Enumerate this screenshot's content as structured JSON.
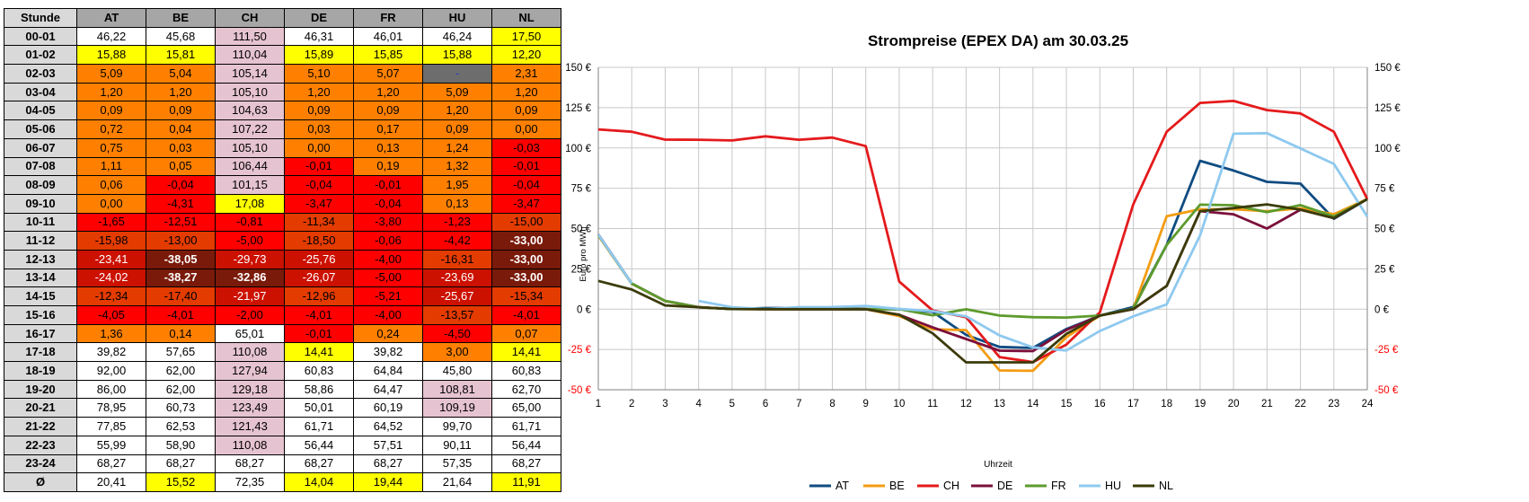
{
  "table": {
    "hour_header": "Stunde",
    "columns": [
      "AT",
      "BE",
      "CH",
      "DE",
      "FR",
      "HU",
      "NL"
    ],
    "rows": [
      {
        "hour": "00-01",
        "cells": [
          {
            "v": "46,22",
            "c": "w"
          },
          {
            "v": "45,68",
            "c": "w"
          },
          {
            "v": "111,50",
            "c": "p"
          },
          {
            "v": "46,31",
            "c": "w"
          },
          {
            "v": "46,01",
            "c": "w"
          },
          {
            "v": "46,24",
            "c": "w"
          },
          {
            "v": "17,50",
            "c": "y"
          }
        ]
      },
      {
        "hour": "01-02",
        "cells": [
          {
            "v": "15,88",
            "c": "y"
          },
          {
            "v": "15,81",
            "c": "y"
          },
          {
            "v": "110,04",
            "c": "p"
          },
          {
            "v": "15,89",
            "c": "y"
          },
          {
            "v": "15,85",
            "c": "y"
          },
          {
            "v": "15,88",
            "c": "y"
          },
          {
            "v": "12,20",
            "c": "y"
          }
        ]
      },
      {
        "hour": "02-03",
        "cells": [
          {
            "v": "5,09",
            "c": "o"
          },
          {
            "v": "5,04",
            "c": "o"
          },
          {
            "v": "105,14",
            "c": "p"
          },
          {
            "v": "5,10",
            "c": "o"
          },
          {
            "v": "5,07",
            "c": "o"
          },
          {
            "v": "-",
            "c": "g"
          },
          {
            "v": "2,31",
            "c": "o"
          }
        ]
      },
      {
        "hour": "03-04",
        "cells": [
          {
            "v": "1,20",
            "c": "o"
          },
          {
            "v": "1,20",
            "c": "o"
          },
          {
            "v": "105,10",
            "c": "p"
          },
          {
            "v": "1,20",
            "c": "o"
          },
          {
            "v": "1,20",
            "c": "o"
          },
          {
            "v": "5,09",
            "c": "o"
          },
          {
            "v": "1,20",
            "c": "o"
          }
        ]
      },
      {
        "hour": "04-05",
        "cells": [
          {
            "v": "0,09",
            "c": "o"
          },
          {
            "v": "0,09",
            "c": "o"
          },
          {
            "v": "104,63",
            "c": "p"
          },
          {
            "v": "0,09",
            "c": "o"
          },
          {
            "v": "0,09",
            "c": "o"
          },
          {
            "v": "1,20",
            "c": "o"
          },
          {
            "v": "0,09",
            "c": "o"
          }
        ]
      },
      {
        "hour": "05-06",
        "cells": [
          {
            "v": "0,72",
            "c": "o"
          },
          {
            "v": "0,04",
            "c": "o"
          },
          {
            "v": "107,22",
            "c": "p"
          },
          {
            "v": "0,03",
            "c": "o"
          },
          {
            "v": "0,17",
            "c": "o"
          },
          {
            "v": "0,09",
            "c": "o"
          },
          {
            "v": "0,00",
            "c": "o"
          }
        ]
      },
      {
        "hour": "06-07",
        "cells": [
          {
            "v": "0,75",
            "c": "o"
          },
          {
            "v": "0,03",
            "c": "o"
          },
          {
            "v": "105,10",
            "c": "p"
          },
          {
            "v": "0,00",
            "c": "o"
          },
          {
            "v": "0,13",
            "c": "o"
          },
          {
            "v": "1,24",
            "c": "o"
          },
          {
            "v": "-0,03",
            "c": "r"
          }
        ]
      },
      {
        "hour": "07-08",
        "cells": [
          {
            "v": "1,11",
            "c": "o"
          },
          {
            "v": "0,05",
            "c": "o"
          },
          {
            "v": "106,44",
            "c": "p"
          },
          {
            "v": "-0,01",
            "c": "r"
          },
          {
            "v": "0,19",
            "c": "o"
          },
          {
            "v": "1,32",
            "c": "o"
          },
          {
            "v": "-0,01",
            "c": "r"
          }
        ]
      },
      {
        "hour": "08-09",
        "cells": [
          {
            "v": "0,06",
            "c": "o"
          },
          {
            "v": "-0,04",
            "c": "r"
          },
          {
            "v": "101,15",
            "c": "p"
          },
          {
            "v": "-0,04",
            "c": "r"
          },
          {
            "v": "-0,01",
            "c": "r"
          },
          {
            "v": "1,95",
            "c": "o"
          },
          {
            "v": "-0,04",
            "c": "r"
          }
        ]
      },
      {
        "hour": "09-10",
        "cells": [
          {
            "v": "0,00",
            "c": "o"
          },
          {
            "v": "-4,31",
            "c": "r"
          },
          {
            "v": "17,08",
            "c": "y"
          },
          {
            "v": "-3,47",
            "c": "r"
          },
          {
            "v": "-0,04",
            "c": "r"
          },
          {
            "v": "0,13",
            "c": "o"
          },
          {
            "v": "-3,47",
            "c": "r"
          }
        ]
      },
      {
        "hour": "10-11",
        "cells": [
          {
            "v": "-1,65",
            "c": "r"
          },
          {
            "v": "-12,51",
            "c": "r"
          },
          {
            "v": "-0,81",
            "c": "r"
          },
          {
            "v": "-11,34",
            "c": "dr"
          },
          {
            "v": "-3,80",
            "c": "r"
          },
          {
            "v": "-1,23",
            "c": "r"
          },
          {
            "v": "-15,00",
            "c": "dr"
          }
        ]
      },
      {
        "hour": "11-12",
        "cells": [
          {
            "v": "-15,98",
            "c": "dr"
          },
          {
            "v": "-13,00",
            "c": "dr"
          },
          {
            "v": "-5,00",
            "c": "r"
          },
          {
            "v": "-18,50",
            "c": "dr"
          },
          {
            "v": "-0,06",
            "c": "r"
          },
          {
            "v": "-4,42",
            "c": "r"
          },
          {
            "v": "-33,00",
            "c": "xr"
          }
        ]
      },
      {
        "hour": "12-13",
        "cells": [
          {
            "v": "-23,41",
            "c": "er"
          },
          {
            "v": "-38,05",
            "c": "xr"
          },
          {
            "v": "-29,73",
            "c": "er"
          },
          {
            "v": "-25,76",
            "c": "er"
          },
          {
            "v": "-4,00",
            "c": "r"
          },
          {
            "v": "-16,31",
            "c": "dr"
          },
          {
            "v": "-33,00",
            "c": "xr"
          }
        ]
      },
      {
        "hour": "13-14",
        "cells": [
          {
            "v": "-24,02",
            "c": "er"
          },
          {
            "v": "-38,27",
            "c": "xr"
          },
          {
            "v": "-32,86",
            "c": "xr"
          },
          {
            "v": "-26,07",
            "c": "er"
          },
          {
            "v": "-5,00",
            "c": "r"
          },
          {
            "v": "-23,69",
            "c": "er"
          },
          {
            "v": "-33,00",
            "c": "xr"
          }
        ]
      },
      {
        "hour": "14-15",
        "cells": [
          {
            "v": "-12,34",
            "c": "dr"
          },
          {
            "v": "-17,40",
            "c": "dr"
          },
          {
            "v": "-21,97",
            "c": "er"
          },
          {
            "v": "-12,96",
            "c": "dr"
          },
          {
            "v": "-5,21",
            "c": "r"
          },
          {
            "v": "-25,67",
            "c": "er"
          },
          {
            "v": "-15,34",
            "c": "dr"
          }
        ]
      },
      {
        "hour": "15-16",
        "cells": [
          {
            "v": "-4,05",
            "c": "r"
          },
          {
            "v": "-4,01",
            "c": "r"
          },
          {
            "v": "-2,00",
            "c": "r"
          },
          {
            "v": "-4,01",
            "c": "r"
          },
          {
            "v": "-4,00",
            "c": "r"
          },
          {
            "v": "-13,57",
            "c": "dr"
          },
          {
            "v": "-4,01",
            "c": "r"
          }
        ]
      },
      {
        "hour": "16-17",
        "cells": [
          {
            "v": "1,36",
            "c": "o"
          },
          {
            "v": "0,14",
            "c": "o"
          },
          {
            "v": "65,01",
            "c": "w"
          },
          {
            "v": "-0,01",
            "c": "r"
          },
          {
            "v": "0,24",
            "c": "o"
          },
          {
            "v": "-4,50",
            "c": "r"
          },
          {
            "v": "0,07",
            "c": "o"
          }
        ]
      },
      {
        "hour": "17-18",
        "cells": [
          {
            "v": "39,82",
            "c": "w"
          },
          {
            "v": "57,65",
            "c": "w"
          },
          {
            "v": "110,08",
            "c": "p"
          },
          {
            "v": "14,41",
            "c": "y"
          },
          {
            "v": "39,82",
            "c": "w"
          },
          {
            "v": "3,00",
            "c": "o"
          },
          {
            "v": "14,41",
            "c": "y"
          }
        ]
      },
      {
        "hour": "18-19",
        "cells": [
          {
            "v": "92,00",
            "c": "w"
          },
          {
            "v": "62,00",
            "c": "w"
          },
          {
            "v": "127,94",
            "c": "p"
          },
          {
            "v": "60,83",
            "c": "w"
          },
          {
            "v": "64,84",
            "c": "w"
          },
          {
            "v": "45,80",
            "c": "w"
          },
          {
            "v": "60,83",
            "c": "w"
          }
        ]
      },
      {
        "hour": "19-20",
        "cells": [
          {
            "v": "86,00",
            "c": "w"
          },
          {
            "v": "62,00",
            "c": "w"
          },
          {
            "v": "129,18",
            "c": "p"
          },
          {
            "v": "58,86",
            "c": "w"
          },
          {
            "v": "64,47",
            "c": "w"
          },
          {
            "v": "108,81",
            "c": "p"
          },
          {
            "v": "62,70",
            "c": "w"
          }
        ]
      },
      {
        "hour": "20-21",
        "cells": [
          {
            "v": "78,95",
            "c": "w"
          },
          {
            "v": "60,73",
            "c": "w"
          },
          {
            "v": "123,49",
            "c": "p"
          },
          {
            "v": "50,01",
            "c": "w"
          },
          {
            "v": "60,19",
            "c": "w"
          },
          {
            "v": "109,19",
            "c": "p"
          },
          {
            "v": "65,00",
            "c": "w"
          }
        ]
      },
      {
        "hour": "21-22",
        "cells": [
          {
            "v": "77,85",
            "c": "w"
          },
          {
            "v": "62,53",
            "c": "w"
          },
          {
            "v": "121,43",
            "c": "p"
          },
          {
            "v": "61,71",
            "c": "w"
          },
          {
            "v": "64,52",
            "c": "w"
          },
          {
            "v": "99,70",
            "c": "w"
          },
          {
            "v": "61,71",
            "c": "w"
          }
        ]
      },
      {
        "hour": "22-23",
        "cells": [
          {
            "v": "55,99",
            "c": "w"
          },
          {
            "v": "58,90",
            "c": "w"
          },
          {
            "v": "110,08",
            "c": "p"
          },
          {
            "v": "56,44",
            "c": "w"
          },
          {
            "v": "57,51",
            "c": "w"
          },
          {
            "v": "90,11",
            "c": "w"
          },
          {
            "v": "56,44",
            "c": "w"
          }
        ]
      },
      {
        "hour": "23-24",
        "cells": [
          {
            "v": "68,27",
            "c": "w"
          },
          {
            "v": "68,27",
            "c": "w"
          },
          {
            "v": "68,27",
            "c": "w"
          },
          {
            "v": "68,27",
            "c": "w"
          },
          {
            "v": "68,27",
            "c": "w"
          },
          {
            "v": "57,35",
            "c": "w"
          },
          {
            "v": "68,27",
            "c": "w"
          }
        ]
      },
      {
        "hour": "Ø",
        "cells": [
          {
            "v": "20,41",
            "c": "w"
          },
          {
            "v": "15,52",
            "c": "y"
          },
          {
            "v": "72,35",
            "c": "w"
          },
          {
            "v": "14,04",
            "c": "y"
          },
          {
            "v": "19,44",
            "c": "y"
          },
          {
            "v": "21,64",
            "c": "w"
          },
          {
            "v": "11,91",
            "c": "y"
          }
        ]
      }
    ]
  },
  "cell_colors": {
    "w": {
      "bg": "#ffffff",
      "fg": "#000000",
      "bold": false
    },
    "y": {
      "bg": "#ffff00",
      "fg": "#000000",
      "bold": false
    },
    "p": {
      "bg": "#e6c3d0",
      "fg": "#000000",
      "bold": false
    },
    "o": {
      "bg": "#ff8000",
      "fg": "#000000",
      "bold": false
    },
    "r": {
      "bg": "#ff0000",
      "fg": "#000000",
      "bold": false
    },
    "dr": {
      "bg": "#e33b00",
      "fg": "#000000",
      "bold": false
    },
    "er": {
      "bg": "#cc1100",
      "fg": "#ffffff",
      "bold": false
    },
    "xr": {
      "bg": "#7a1a0a",
      "fg": "#ffffff",
      "bold": true
    },
    "g": {
      "bg": "#6d6d6d",
      "fg": "#1f3fbf",
      "bold": false
    }
  },
  "chart_data": {
    "type": "line",
    "title": "Strompreise (EPEX DA) am 30.03.25",
    "xlabel": "Uhrzeit",
    "ylabel": "Euro pro MWh",
    "x": [
      1,
      2,
      3,
      4,
      5,
      6,
      7,
      8,
      9,
      10,
      11,
      12,
      13,
      14,
      15,
      16,
      17,
      18,
      19,
      20,
      21,
      22,
      23,
      24
    ],
    "ylim": [
      -50,
      150
    ],
    "yticks": [
      "150 €",
      "125 €",
      "100 €",
      "75 €",
      "50 €",
      "25 €",
      "0 €",
      "-25 €",
      "-50 €"
    ],
    "ytick_values": [
      150,
      125,
      100,
      75,
      50,
      25,
      0,
      -25,
      -50
    ],
    "negative_tick_color": "#ff0000",
    "grid": true,
    "legend": "bottom",
    "series": [
      {
        "name": "AT",
        "color": "#0f4c81",
        "values": [
          46.22,
          15.88,
          5.09,
          1.2,
          0.09,
          0.72,
          0.75,
          1.11,
          0.06,
          0.0,
          -1.65,
          -15.98,
          -23.41,
          -24.02,
          -12.34,
          -4.05,
          1.36,
          39.82,
          92.0,
          86.0,
          78.95,
          77.85,
          55.99,
          68.27
        ]
      },
      {
        "name": "BE",
        "color": "#f39c12",
        "values": [
          45.68,
          15.81,
          5.04,
          1.2,
          0.09,
          0.04,
          0.03,
          0.05,
          -0.04,
          -4.31,
          -12.51,
          -13.0,
          -38.05,
          -38.27,
          -17.4,
          -4.01,
          0.14,
          57.65,
          62.0,
          62.0,
          60.73,
          62.53,
          58.9,
          68.27
        ]
      },
      {
        "name": "CH",
        "color": "#e41a1c",
        "values": [
          111.5,
          110.04,
          105.14,
          105.1,
          104.63,
          107.22,
          105.1,
          106.44,
          101.15,
          17.08,
          -0.81,
          -5.0,
          -29.73,
          -32.86,
          -21.97,
          -2.0,
          65.01,
          110.08,
          127.94,
          129.18,
          123.49,
          121.43,
          110.08,
          68.27
        ]
      },
      {
        "name": "DE",
        "color": "#7b0f3b",
        "values": [
          46.31,
          15.89,
          5.1,
          1.2,
          0.09,
          0.03,
          0.0,
          -0.01,
          -0.04,
          -3.47,
          -11.34,
          -18.5,
          -25.76,
          -26.07,
          -12.96,
          -4.01,
          -0.01,
          14.41,
          60.83,
          58.86,
          50.01,
          61.71,
          56.44,
          68.27
        ]
      },
      {
        "name": "FR",
        "color": "#5d9b2d",
        "values": [
          46.01,
          15.85,
          5.07,
          1.2,
          0.09,
          0.17,
          0.13,
          0.19,
          -0.01,
          -0.04,
          -3.8,
          -0.06,
          -4.0,
          -5.0,
          -5.21,
          -4.0,
          0.24,
          39.82,
          64.84,
          64.47,
          60.19,
          64.52,
          57.51,
          68.27
        ]
      },
      {
        "name": "HU",
        "color": "#8ec9ef",
        "values": [
          46.24,
          15.88,
          null,
          5.09,
          1.2,
          0.09,
          1.24,
          1.32,
          1.95,
          0.13,
          -1.23,
          -4.42,
          -16.31,
          -23.69,
          -25.67,
          -13.57,
          -4.5,
          3.0,
          45.8,
          108.81,
          109.19,
          99.7,
          90.11,
          57.35
        ]
      },
      {
        "name": "NL",
        "color": "#3b3b0a",
        "values": [
          17.5,
          12.2,
          2.31,
          1.2,
          0.09,
          0.0,
          -0.03,
          -0.01,
          -0.04,
          -3.47,
          -15.0,
          -33.0,
          -33.0,
          -33.0,
          -15.34,
          -4.01,
          0.07,
          14.41,
          60.83,
          62.7,
          65.0,
          61.71,
          56.44,
          68.27
        ]
      }
    ]
  }
}
